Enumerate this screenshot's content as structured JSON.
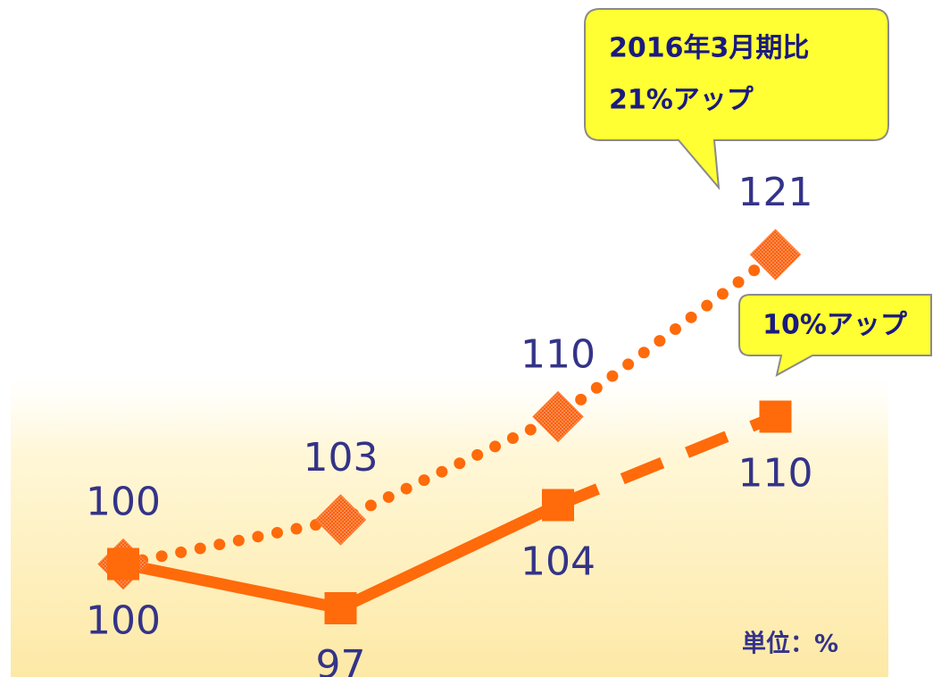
{
  "chart_data": {
    "type": "line",
    "categories": [
      null,
      null,
      null,
      null
    ],
    "series": [
      {
        "color": "#ff6a0a",
        "marker": "diamond",
        "line_style": "dotted",
        "label_position": "above",
        "values": [
          100,
          103,
          110,
          121
        ]
      },
      {
        "color": "#ff6a0a",
        "marker": "square",
        "line_style": "solid",
        "last_segment_style": "dashed",
        "label_position": "below",
        "values": [
          100,
          97,
          104,
          110
        ]
      }
    ],
    "annotations": [
      {
        "text": [
          "2016年3月期比",
          "21%アップ"
        ]
      },
      {
        "text": [
          "10%アップ"
        ]
      }
    ],
    "unit_label": "単位：%"
  }
}
